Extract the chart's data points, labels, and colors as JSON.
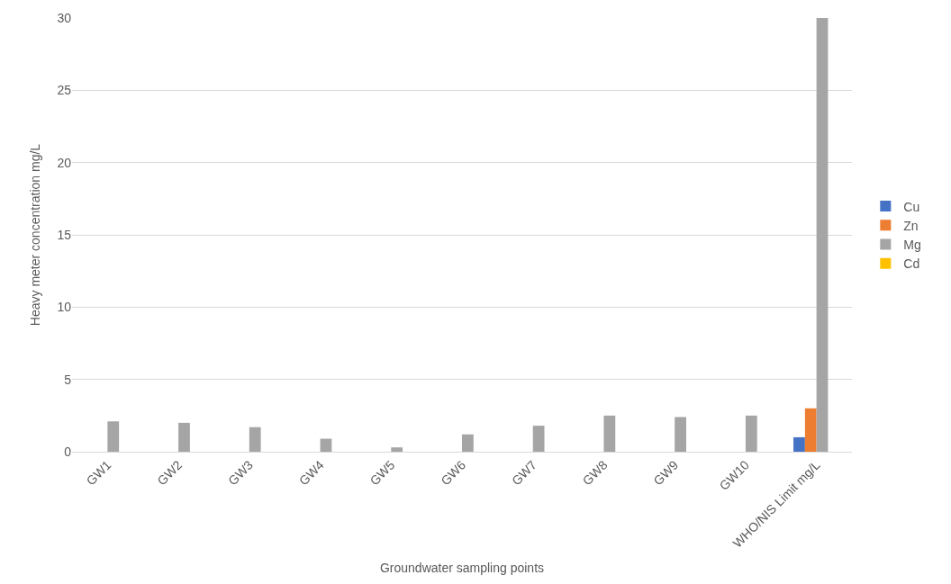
{
  "chart_data": {
    "type": "bar",
    "xlabel": "Groundwater sampling points",
    "ylabel": "Heavy meter concentration mg/L",
    "categories": [
      "GW1",
      "GW2",
      "GW3",
      "GW4",
      "GW5",
      "GW6",
      "GW7",
      "GW8",
      "GW9",
      "GW10",
      "WHO/NIS Limit mg/L"
    ],
    "series": [
      {
        "name": "Cu",
        "color": "#4472c4",
        "values": [
          0,
          0,
          0,
          0,
          0,
          0,
          0,
          0,
          0,
          0,
          1
        ]
      },
      {
        "name": "Zn",
        "color": "#ed7d31",
        "values": [
          0,
          0,
          0,
          0,
          0,
          0,
          0,
          0,
          0,
          0,
          3
        ]
      },
      {
        "name": "Mg",
        "color": "#a5a5a5",
        "values": [
          2.1,
          2.0,
          1.7,
          0.9,
          0.3,
          1.2,
          1.8,
          2.5,
          2.4,
          2.5,
          30
        ]
      },
      {
        "name": "Cd",
        "color": "#ffc000",
        "values": [
          0,
          0,
          0,
          0,
          0,
          0,
          0,
          0,
          0,
          0,
          0
        ]
      }
    ],
    "ylim": [
      0,
      30
    ],
    "yticks": [
      0,
      5,
      10,
      15,
      20,
      25,
      30
    ],
    "grid": "y",
    "legend": "right"
  }
}
